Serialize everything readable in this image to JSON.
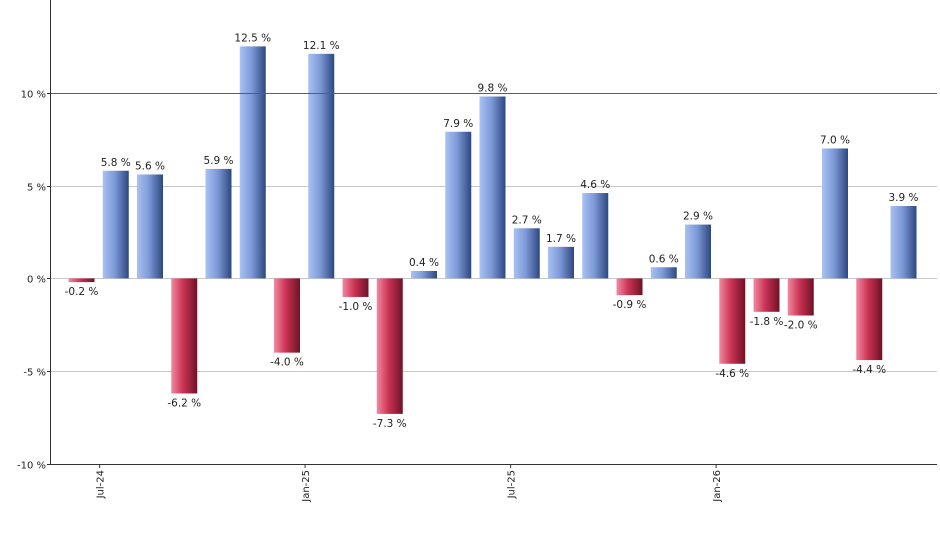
{
  "chart_data": {
    "type": "bar",
    "title": "",
    "xlabel": "",
    "ylabel": "",
    "ylim": [
      -10,
      15
    ],
    "y_ticks": [
      {
        "value": 10,
        "label": "10 %"
      },
      {
        "value": 5,
        "label": "5 %"
      },
      {
        "value": 0,
        "label": "0 %"
      },
      {
        "value": -5,
        "label": "-5 %"
      },
      {
        "value": -10,
        "label": "-10 %"
      }
    ],
    "x_tick_labels": [
      {
        "index": 1,
        "label": "Jul-24"
      },
      {
        "index": 7,
        "label": "Jan-25"
      },
      {
        "index": 13,
        "label": "Jul-25"
      },
      {
        "index": 19,
        "label": "Jan-26"
      }
    ],
    "values": [
      -0.2,
      5.8,
      5.6,
      -6.2,
      5.9,
      12.5,
      -4.0,
      12.1,
      -1.0,
      -7.3,
      0.4,
      7.9,
      9.8,
      2.7,
      1.7,
      4.6,
      -0.9,
      0.6,
      2.9,
      -4.6,
      -1.8,
      -2.0,
      7.0,
      -4.4,
      3.9
    ],
    "data_labels": [
      "-0.2 %",
      "5.8 %",
      "5.6 %",
      "-6.2 %",
      "5.9 %",
      "12.5 %",
      "-4.0 %",
      "12.1 %",
      "-1.0 %",
      "-7.3 %",
      "0.4 %",
      "7.9 %",
      "9.8 %",
      "2.7 %",
      "1.7 %",
      "4.6 %",
      "-0.9 %",
      "0.6 %",
      "2.9 %",
      "-4.6 %",
      "-1.8 %",
      "-2.0 %",
      "7.0 %",
      "-4.4 %",
      "3.9 %"
    ],
    "reference_line": {
      "value": 10,
      "color": "#2e7d32"
    },
    "colors": {
      "positive": "#7a98d6",
      "negative": "#cc3355",
      "grid": "#c8c8c8",
      "axis": "#333333"
    },
    "grid": true
  }
}
